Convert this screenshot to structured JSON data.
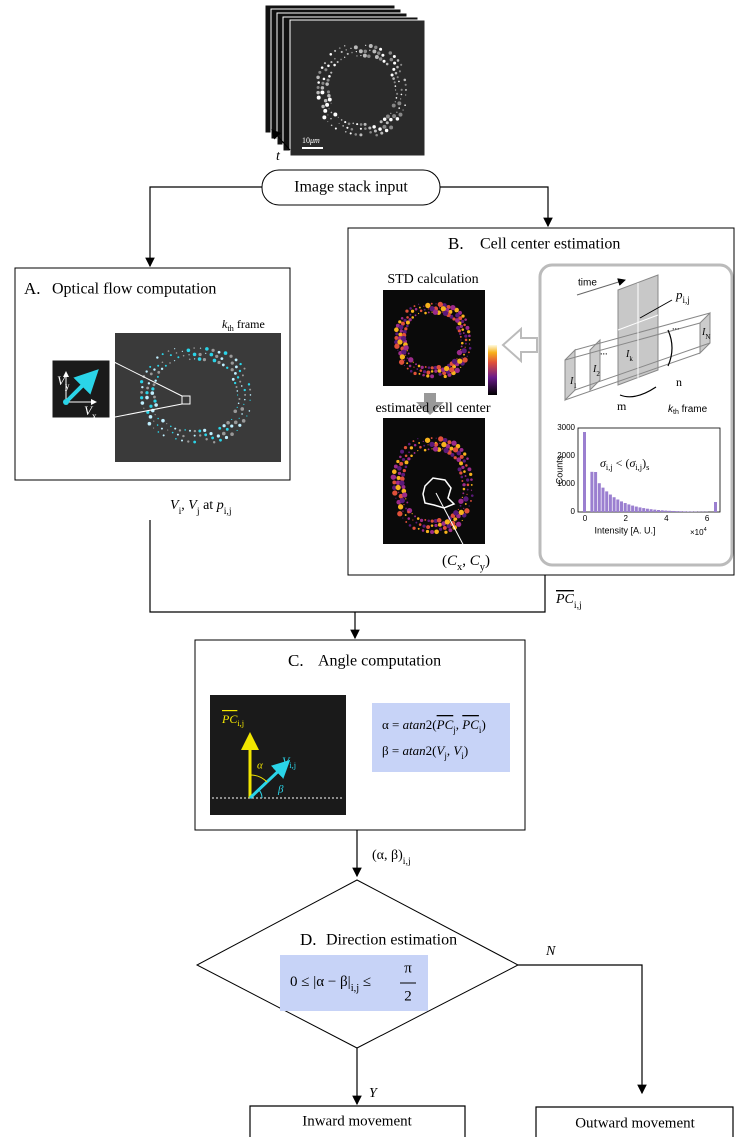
{
  "image_stack": {
    "scale_bar": [
      {
        "text": "10"
      },
      {
        "text": "μm",
        "style": "italic"
      }
    ],
    "time_axis": "t"
  },
  "input": {
    "label": "Image stack input"
  },
  "panel_a": {
    "letter": "A.",
    "title": "Optical flow computation",
    "frame_label": [
      {
        "text": "k",
        "style": "italic"
      },
      {
        "text": "th",
        "style": "sub"
      },
      {
        "text": " frame"
      }
    ],
    "vy": [
      {
        "text": "V",
        "style": "italic"
      },
      {
        "text": "y",
        "style": "sub"
      }
    ],
    "vx": [
      {
        "text": "V",
        "style": "italic"
      },
      {
        "text": "x",
        "style": "sub"
      }
    ]
  },
  "edge_a": [
    {
      "text": "V",
      "style": "italic"
    },
    {
      "text": "i",
      "style": "sub"
    },
    {
      "text": ", "
    },
    {
      "text": "V",
      "style": "italic"
    },
    {
      "text": "j",
      "style": "sub"
    },
    {
      "text": " at "
    },
    {
      "text": "p",
      "style": "italic"
    },
    {
      "text": "i,j",
      "style": "sub"
    }
  ],
  "panel_b": {
    "letter": "B.",
    "title": "Cell center estimation",
    "std_label": "STD calculation",
    "center_label": "estimated cell center",
    "center_coords": [
      {
        "text": "("
      },
      {
        "text": "C",
        "style": "italic"
      },
      {
        "text": "x",
        "style": "sub"
      },
      {
        "text": ", "
      },
      {
        "text": "C",
        "style": "italic"
      },
      {
        "text": "y",
        "style": "sub"
      },
      {
        "text": ")"
      }
    ],
    "schematic": {
      "time": "time",
      "pixel": [
        {
          "text": "p",
          "style": "italic"
        },
        {
          "text": "i,j",
          "style": "sub"
        }
      ],
      "n": "n",
      "m": "m",
      "frame_label": [
        {
          "text": "k",
          "style": "italic"
        },
        {
          "text": "th",
          "style": "sub"
        },
        {
          "text": " frame"
        }
      ],
      "frames": [
        [
          {
            "text": "I",
            "style": "italic"
          },
          {
            "text": "1",
            "style": "sub"
          }
        ],
        [
          {
            "text": "I",
            "style": "italic"
          },
          {
            "text": "2",
            "style": "sub"
          }
        ],
        [
          {
            "text": "I",
            "style": "italic"
          },
          {
            "text": "k",
            "style": "sub"
          }
        ],
        [
          {
            "text": "I",
            "style": "italic"
          },
          {
            "text": "N",
            "style": "sub"
          }
        ]
      ],
      "ellipsis": "..."
    },
    "histogram": {
      "yticks": [
        "3000",
        "2000",
        "1000",
        "0"
      ],
      "xticks": [
        "0",
        "2",
        "4",
        "6"
      ],
      "ylabel": "Counts",
      "xlabel": "Intensity [A. U.]",
      "xscale": [
        {
          "text": "×10"
        },
        {
          "text": "4",
          "style": "sup"
        }
      ],
      "condition": [
        {
          "text": "σ",
          "style": "italic"
        },
        {
          "text": "i,j",
          "style": "sub"
        },
        {
          "text": " < ("
        },
        {
          "text": "σ",
          "style": "italic"
        },
        {
          "text": "i,j",
          "style": "sub"
        },
        {
          "text": ")"
        },
        {
          "text": "s",
          "style": "sub"
        }
      ]
    }
  },
  "edge_b": [
    {
      "text": "PC",
      "style": "vec"
    },
    {
      "text": "i,j",
      "style": "sub"
    }
  ],
  "panel_c": {
    "letter": "C.",
    "title": "Angle computation",
    "pc": [
      {
        "text": "PC",
        "style": "vec"
      },
      {
        "text": "i,j",
        "style": "sub"
      }
    ],
    "v": [
      {
        "text": "V",
        "style": "italic"
      },
      {
        "text": "i,j",
        "style": "sub"
      }
    ],
    "alpha": "α",
    "beta": "β",
    "formula_alpha": [
      {
        "text": "α = "
      },
      {
        "text": "atan",
        "style": "italic"
      },
      {
        "text": "2("
      },
      {
        "text": "PC",
        "style": "vec"
      },
      {
        "text": "j",
        "style": "sub"
      },
      {
        "text": ", "
      },
      {
        "text": "PC",
        "style": "vec"
      },
      {
        "text": "i",
        "style": "sub"
      },
      {
        "text": ")"
      }
    ],
    "formula_beta": [
      {
        "text": "β = "
      },
      {
        "text": "atan",
        "style": "italic"
      },
      {
        "text": "2("
      },
      {
        "text": "V",
        "style": "italic"
      },
      {
        "text": "j",
        "style": "sub"
      },
      {
        "text": ", "
      },
      {
        "text": "V",
        "style": "italic"
      },
      {
        "text": "i",
        "style": "sub"
      },
      {
        "text": ")"
      }
    ]
  },
  "edge_c": [
    {
      "text": "(α, β)"
    },
    {
      "text": "i,j",
      "style": "sub"
    }
  ],
  "panel_d": {
    "letter": "D.",
    "title": "Direction estimation",
    "condition": [
      {
        "text": "0 ≤ |α − β|"
      },
      {
        "text": "i,j",
        "style": "sub"
      },
      {
        "text": " ≤ "
      }
    ],
    "numerator": "π",
    "denominator": "2"
  },
  "branch_no": "N",
  "branch_yes": "Y",
  "outcomes": {
    "inward": "Inward movement",
    "outward": "Outward movement"
  }
}
